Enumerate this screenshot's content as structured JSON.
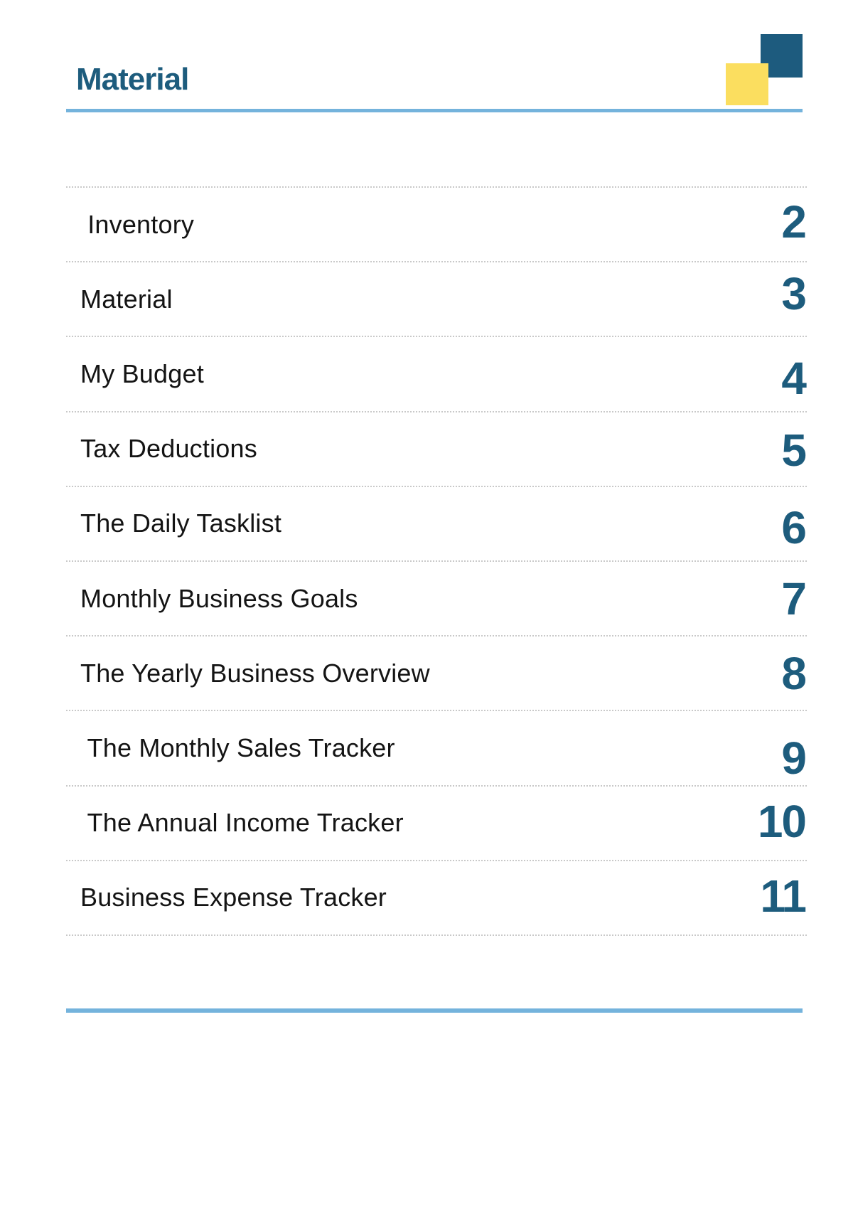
{
  "page": {
    "title": "Material"
  },
  "decor": {
    "yellow_square_color": "#FBDE5F",
    "teal_square_color": "#1D5B7E",
    "rule_color": "#74B3DC",
    "accent_text_color": "#1D5C7D"
  },
  "toc": {
    "items": [
      {
        "label": " Inventory",
        "page": "2"
      },
      {
        "label": "Material",
        "page": "3"
      },
      {
        "label": "My Budget",
        "page": "4"
      },
      {
        "label": "Tax Deductions",
        "page": "5"
      },
      {
        "label": "The Daily Tasklist",
        "page": "6"
      },
      {
        "label": "Monthly Business Goals",
        "page": "7"
      },
      {
        "label": "The Yearly Business Overview",
        "page": "8"
      },
      {
        "label": " The Monthly Sales Tracker",
        "page": "9"
      },
      {
        "label": " The Annual Income Tracker",
        "page": "10"
      },
      {
        "label": "Business Expense Tracker",
        "page": "11"
      }
    ]
  }
}
